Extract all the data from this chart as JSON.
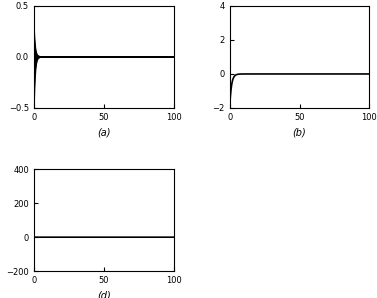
{
  "xlim": [
    0,
    100
  ],
  "subplot_a": {
    "ylim": [
      -0.5,
      0.5
    ],
    "yticks": [
      -0.5,
      0,
      0.5
    ],
    "xticks": [
      0,
      50,
      100
    ],
    "label": "(a)",
    "line_color": "#000000",
    "line_width": 1.2,
    "initial_values": [
      -0.5,
      -0.35,
      -0.2,
      -0.1,
      0.05,
      0.12,
      0.2,
      0.3
    ],
    "decay_rate": 1.2
  },
  "subplot_b": {
    "ylim": [
      -2,
      4
    ],
    "yticks": [
      -2,
      0,
      2,
      4
    ],
    "xticks": [
      0,
      50,
      100
    ],
    "label": "(b)",
    "line_color": "#000000",
    "line_width": 1.2,
    "initial_value": -2.0,
    "decay_rate": 0.8
  },
  "subplot_d": {
    "ylim": [
      -200,
      400
    ],
    "yticks": [
      -200,
      0,
      200,
      400
    ],
    "xticks": [
      0,
      50,
      100
    ],
    "label": "(d)",
    "line_color": "#000000",
    "line_width": 1.2
  },
  "background_color": "#ffffff",
  "tick_fontsize": 6,
  "label_fontsize": 7
}
